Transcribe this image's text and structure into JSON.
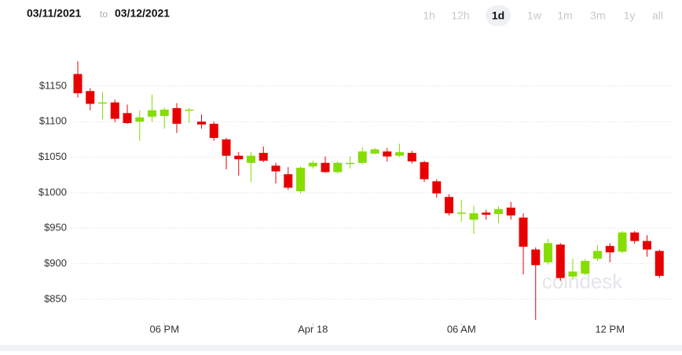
{
  "header": {
    "from": "03/11/2021",
    "separator": "to",
    "to": "03/12/2021",
    "ranges": [
      "1h",
      "12h",
      "1d",
      "1w",
      "1m",
      "3m",
      "1y",
      "all"
    ],
    "selected": "1d"
  },
  "chart_data": {
    "type": "candlestick",
    "watermark": "coindesk",
    "categories": [
      null,
      null,
      null,
      null,
      null,
      null,
      null,
      "06 PM",
      null,
      null,
      null,
      null,
      null,
      null,
      null,
      null,
      null,
      null,
      null,
      "Apr 18",
      null,
      null,
      null,
      null,
      null,
      null,
      null,
      null,
      null,
      null,
      null,
      "06 AM",
      null,
      null,
      null,
      null,
      null,
      null,
      null,
      null,
      null,
      null,
      null,
      "12 PM",
      null,
      null,
      null,
      null
    ],
    "open": [
      1167,
      1143,
      1126,
      1127,
      1112,
      1100,
      1107,
      1108,
      1119,
      1116,
      1100,
      1097,
      1075,
      1052,
      1042,
      1056,
      1038,
      1026,
      1002,
      1037,
      1042,
      1029,
      1041,
      1042,
      1055,
      1058,
      1052,
      1056,
      1043,
      1016,
      994,
      971,
      962,
      972,
      970,
      979,
      965,
      920,
      902,
      927,
      882,
      886,
      907,
      925,
      917,
      944,
      932,
      918
    ],
    "high": [
      1185,
      1147,
      1142,
      1131,
      1124,
      1116,
      1138,
      1120,
      1126,
      1119,
      1110,
      1100,
      1077,
      1057,
      1057,
      1065,
      1042,
      1036,
      1037,
      1045,
      1051,
      1044,
      1051,
      1064,
      1063,
      1063,
      1069,
      1059,
      1045,
      1019,
      998,
      990,
      982,
      976,
      981,
      987,
      971,
      923,
      935,
      929,
      907,
      907,
      926,
      929,
      946,
      946,
      940,
      920
    ],
    "low": [
      1134,
      1116,
      1103,
      1099,
      1097,
      1073,
      1100,
      1090,
      1084,
      1098,
      1090,
      1073,
      1033,
      1024,
      1015,
      1043,
      1013,
      1004,
      999,
      1034,
      1028,
      1027,
      1034,
      1040,
      1054,
      1044,
      1050,
      1041,
      1015,
      993,
      968,
      959,
      942,
      962,
      957,
      962,
      885,
      821,
      899,
      876,
      878,
      884,
      904,
      902,
      915,
      928,
      910,
      880
    ],
    "close": [
      1140,
      1125,
      1127,
      1104,
      1098,
      1106,
      1116,
      1117,
      1097,
      1117,
      1096,
      1077,
      1052,
      1047,
      1052,
      1045,
      1030,
      1007,
      1035,
      1042,
      1029,
      1042,
      1042,
      1058,
      1061,
      1051,
      1057,
      1044,
      1019,
      999,
      971,
      972,
      971,
      969,
      977,
      968,
      924,
      898,
      929,
      880,
      889,
      904,
      918,
      916,
      944,
      932,
      920,
      883
    ],
    "up_color": "#86dd00",
    "down_color": "#e80000",
    "ylim": [
      819,
      1205
    ],
    "yticks": [
      {
        "value": 850,
        "label": "$850"
      },
      {
        "value": 900,
        "label": "$900"
      },
      {
        "value": 950,
        "label": "$950"
      },
      {
        "value": 1000,
        "label": "$1000"
      },
      {
        "value": 1050,
        "label": "$1050"
      },
      {
        "value": 1100,
        "label": "$1100"
      },
      {
        "value": 1150,
        "label": "$1150"
      }
    ],
    "grid": true
  }
}
